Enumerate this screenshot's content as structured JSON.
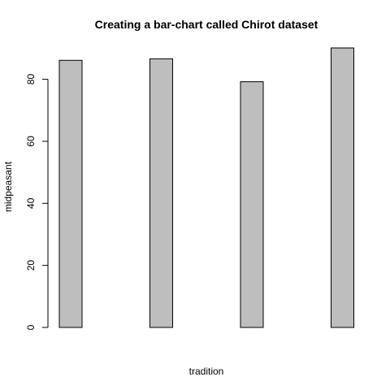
{
  "chart_data": {
    "type": "bar",
    "title": "Creating a bar-chart called Chirot dataset",
    "xlabel": "tradition",
    "ylabel": "midpeasant",
    "categories": [
      "",
      "",
      "",
      ""
    ],
    "values": [
      86.1,
      86.6,
      79.2,
      90.1
    ],
    "ylim": [
      0,
      90.1
    ],
    "yticks": [
      0,
      20,
      40,
      60,
      80
    ],
    "grid": false,
    "legend": "none",
    "bar_color": "#bebebe",
    "bar_border_color": "#000000"
  }
}
